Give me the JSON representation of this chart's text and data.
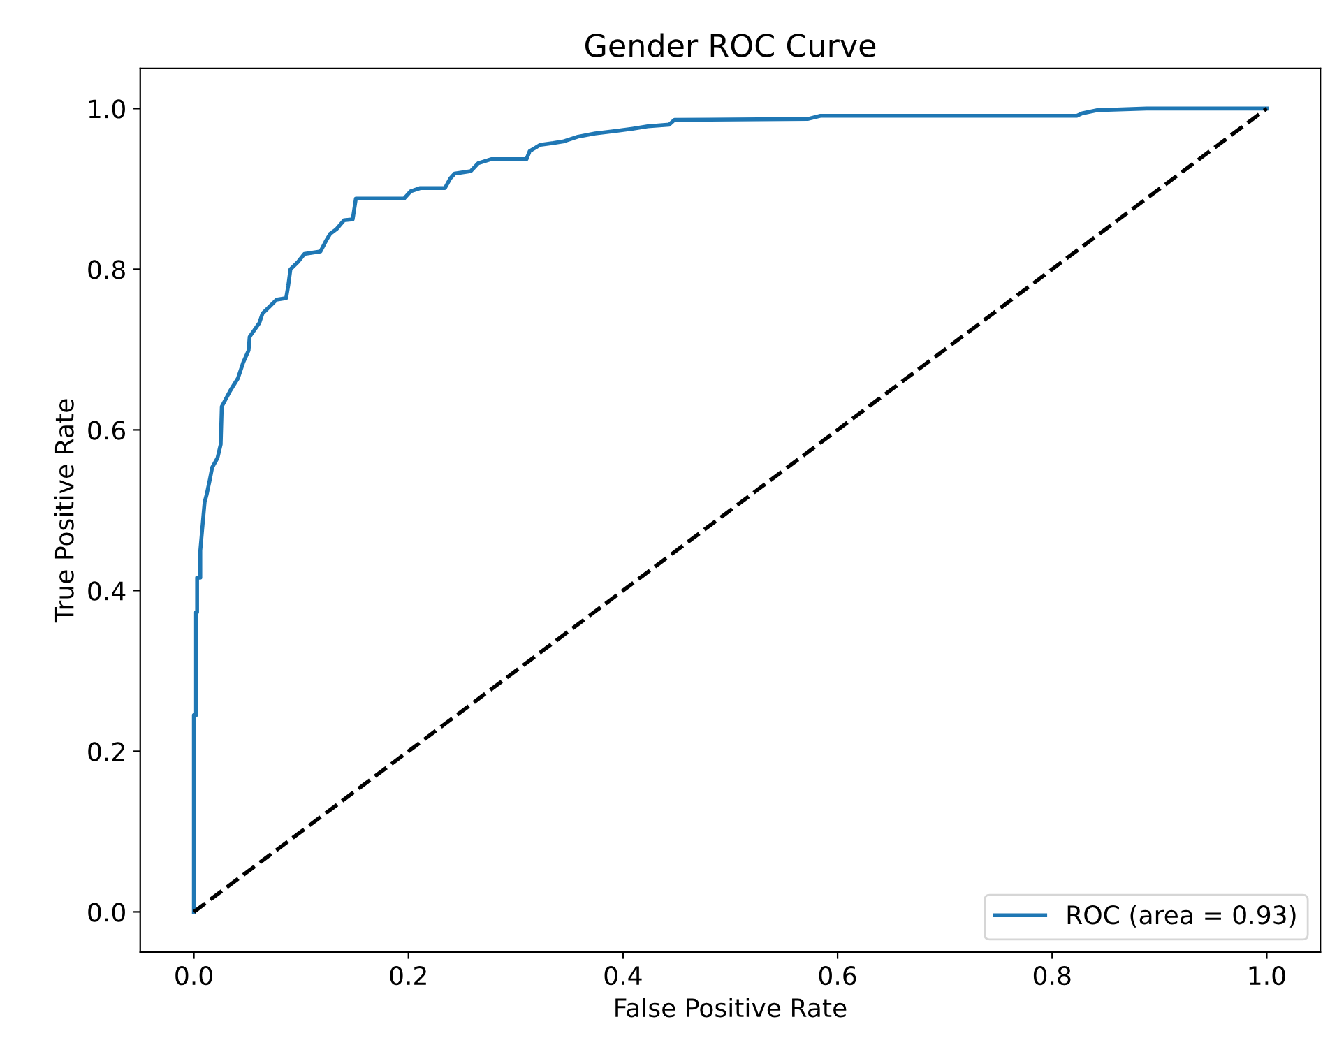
{
  "chart_data": {
    "type": "line",
    "title": "Gender ROC Curve",
    "xlabel": "False Positive Rate",
    "ylabel": "True Positive Rate",
    "xlim": [
      -0.05,
      1.05
    ],
    "ylim": [
      -0.05,
      1.05
    ],
    "xticks": [
      {
        "value": 0,
        "label": "0.0"
      },
      {
        "value": 0.2,
        "label": "0.2"
      },
      {
        "value": 0.4,
        "label": "0.4"
      },
      {
        "value": 0.6,
        "label": "0.6"
      },
      {
        "value": 0.8,
        "label": "0.8"
      },
      {
        "value": 1,
        "label": "1.0"
      }
    ],
    "yticks": [
      {
        "value": 0,
        "label": "0.0"
      },
      {
        "value": 0.2,
        "label": "0.2"
      },
      {
        "value": 0.4,
        "label": "0.4"
      },
      {
        "value": 0.6,
        "label": "0.6"
      },
      {
        "value": 0.8,
        "label": "0.8"
      },
      {
        "value": 1,
        "label": "1.0"
      }
    ],
    "grid": false,
    "legend": "bottom right",
    "line_style": "solid",
    "marker": "none",
    "series": [
      {
        "name": "ROC (area = 0.93)",
        "color": "#1f77b4",
        "x": [
          0,
          0,
          0.002,
          0.002,
          0.003,
          0.003,
          0.006,
          0.006,
          0.01,
          0.012,
          0.015,
          0.017,
          0.022,
          0.025,
          0.026,
          0.034,
          0.041,
          0.046,
          0.051,
          0.052,
          0.061,
          0.064,
          0.071,
          0.077,
          0.086,
          0.088,
          0.09,
          0.097,
          0.103,
          0.118,
          0.123,
          0.127,
          0.133,
          0.14,
          0.148,
          0.151,
          0.196,
          0.202,
          0.211,
          0.234,
          0.239,
          0.243,
          0.258,
          0.265,
          0.277,
          0.31,
          0.313,
          0.323,
          0.335,
          0.344,
          0.358,
          0.374,
          0.393,
          0.409,
          0.423,
          0.443,
          0.448,
          0.572,
          0.584,
          0.823,
          0.828,
          0.842,
          0.888,
          1.0
        ],
        "values": [
          0,
          0.245,
          0.245,
          0.373,
          0.373,
          0.416,
          0.416,
          0.45,
          0.51,
          0.52,
          0.539,
          0.553,
          0.565,
          0.582,
          0.629,
          0.649,
          0.664,
          0.684,
          0.699,
          0.716,
          0.733,
          0.745,
          0.754,
          0.762,
          0.764,
          0.78,
          0.8,
          0.809,
          0.819,
          0.822,
          0.835,
          0.844,
          0.85,
          0.861,
          0.862,
          0.888,
          0.888,
          0.897,
          0.901,
          0.901,
          0.913,
          0.919,
          0.922,
          0.932,
          0.937,
          0.937,
          0.947,
          0.955,
          0.957,
          0.959,
          0.965,
          0.969,
          0.972,
          0.975,
          0.978,
          0.98,
          0.986,
          0.987,
          0.991,
          0.991,
          0.994,
          0.998,
          1.0,
          1.0
        ]
      },
      {
        "color": "#000000",
        "line_style": "dashed",
        "x": [
          0,
          1
        ],
        "values": [
          0,
          1
        ]
      }
    ]
  }
}
